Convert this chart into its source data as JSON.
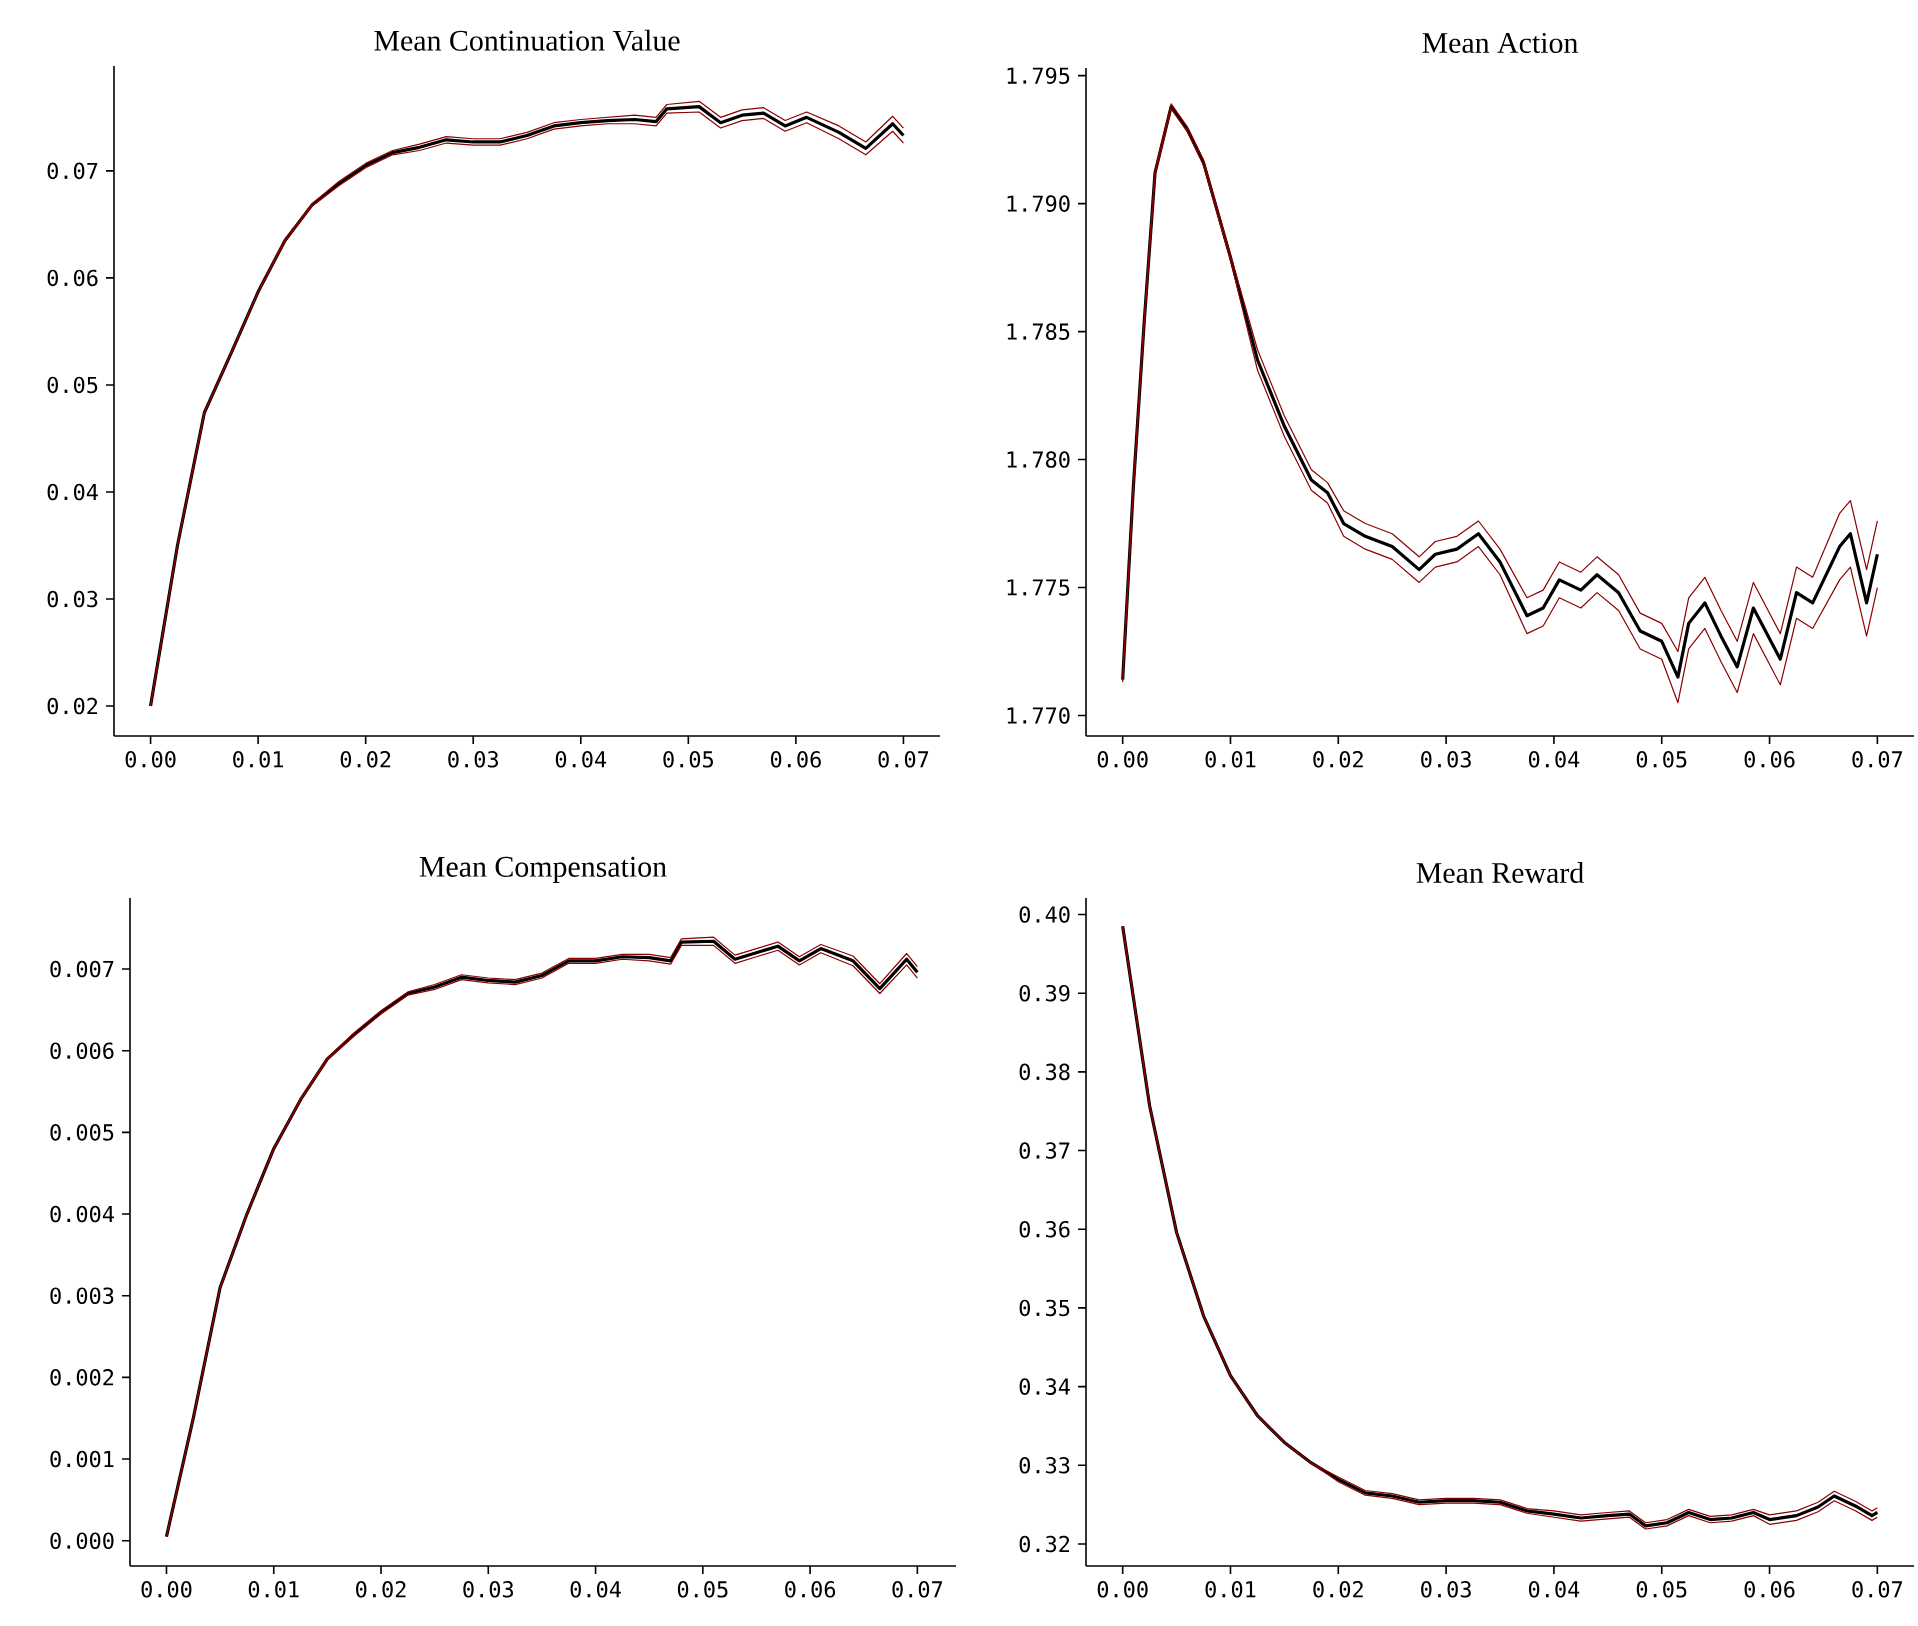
{
  "chart_data": [
    {
      "type": "line",
      "title": "Mean Continuation Value",
      "x": [
        0,
        0.0025,
        0.005,
        0.0075,
        0.01,
        0.0125,
        0.015,
        0.0175,
        0.02,
        0.0225,
        0.025,
        0.0275,
        0.03,
        0.0325,
        0.035,
        0.0375,
        0.04,
        0.0425,
        0.045,
        0.047,
        0.048,
        0.051,
        0.053,
        0.055,
        0.057,
        0.059,
        0.061,
        0.064,
        0.0665,
        0.069,
        0.07
      ],
      "series": [
        {
          "color": "#000000",
          "values": [
            0.02,
            0.035,
            0.0474,
            0.053,
            0.0587,
            0.0635,
            0.0668,
            0.0688,
            0.0705,
            0.0717,
            0.0722,
            0.0729,
            0.0727,
            0.0727,
            0.0733,
            0.0742,
            0.0745,
            0.0747,
            0.0748,
            0.0746,
            0.0758,
            0.076,
            0.0745,
            0.0752,
            0.0754,
            0.0742,
            0.075,
            0.0736,
            0.0721,
            0.0744,
            0.0733
          ]
        },
        {
          "color": "#8b0000",
          "values": [
            0.02,
            0.035,
            0.0474,
            0.053,
            0.0587,
            0.0636,
            0.0669,
            0.069,
            0.0707,
            0.0719,
            0.0725,
            0.0732,
            0.073,
            0.073,
            0.0736,
            0.0745,
            0.0748,
            0.075,
            0.0752,
            0.075,
            0.0762,
            0.0765,
            0.075,
            0.0757,
            0.0759,
            0.0747,
            0.0755,
            0.0742,
            0.0727,
            0.0751,
            0.074
          ]
        },
        {
          "color": "#8b0000",
          "values": [
            0.02,
            0.035,
            0.0474,
            0.053,
            0.0587,
            0.0634,
            0.0667,
            0.0686,
            0.0703,
            0.0715,
            0.0719,
            0.0726,
            0.0724,
            0.0724,
            0.073,
            0.0739,
            0.0742,
            0.0744,
            0.0744,
            0.0742,
            0.0754,
            0.0755,
            0.074,
            0.0747,
            0.0749,
            0.0737,
            0.0745,
            0.073,
            0.0715,
            0.0737,
            0.0726
          ]
        }
      ],
      "xlim": [
        -0.0034,
        0.0734
      ],
      "ylim": [
        0.0172,
        0.0798
      ],
      "xticks": [
        {
          "value": 0,
          "label": "0.00"
        },
        {
          "value": 0.01,
          "label": "0.01"
        },
        {
          "value": 0.02,
          "label": "0.02"
        },
        {
          "value": 0.03,
          "label": "0.03"
        },
        {
          "value": 0.04,
          "label": "0.04"
        },
        {
          "value": 0.05,
          "label": "0.05"
        },
        {
          "value": 0.06,
          "label": "0.06"
        },
        {
          "value": 0.07,
          "label": "0.07"
        }
      ],
      "yticks": [
        0.02,
        0.03,
        0.04,
        0.05,
        0.06,
        0.07
      ]
    },
    {
      "type": "line",
      "title": "Mean Action",
      "x": [
        0,
        0.001,
        0.002,
        0.003,
        0.0045,
        0.006,
        0.0075,
        0.01,
        0.0125,
        0.015,
        0.0175,
        0.019,
        0.0205,
        0.0225,
        0.025,
        0.0275,
        0.029,
        0.031,
        0.033,
        0.035,
        0.0375,
        0.039,
        0.0405,
        0.0425,
        0.044,
        0.046,
        0.048,
        0.05,
        0.0515,
        0.0525,
        0.054,
        0.0555,
        0.057,
        0.0585,
        0.061,
        0.0625,
        0.064,
        0.0665,
        0.0675,
        0.069,
        0.07
      ],
      "series": [
        {
          "color": "#000000",
          "values": [
            1.7714,
            1.779,
            1.7854,
            1.7912,
            1.7938,
            1.7929,
            1.7916,
            1.7879,
            1.7839,
            1.7813,
            1.7792,
            1.7787,
            1.7775,
            1.777,
            1.7766,
            1.7757,
            1.7763,
            1.7765,
            1.7771,
            1.776,
            1.7739,
            1.7742,
            1.7753,
            1.7749,
            1.7755,
            1.7748,
            1.7733,
            1.7729,
            1.7715,
            1.7736,
            1.7744,
            1.7731,
            1.7719,
            1.7742,
            1.7722,
            1.7748,
            1.7744,
            1.7766,
            1.7771,
            1.7744,
            1.7763
          ]
        },
        {
          "color": "#8b0000",
          "values": [
            1.7715,
            1.7791,
            1.7855,
            1.7913,
            1.7939,
            1.793,
            1.7917,
            1.788,
            1.7843,
            1.7817,
            1.7796,
            1.7791,
            1.778,
            1.7775,
            1.7771,
            1.7762,
            1.7768,
            1.777,
            1.7776,
            1.7765,
            1.7746,
            1.7749,
            1.776,
            1.7756,
            1.7762,
            1.7755,
            1.774,
            1.7736,
            1.7725,
            1.7746,
            1.7754,
            1.7741,
            1.7729,
            1.7752,
            1.7732,
            1.7758,
            1.7754,
            1.7779,
            1.7784,
            1.7757,
            1.7776
          ]
        },
        {
          "color": "#8b0000",
          "values": [
            1.7713,
            1.7789,
            1.7853,
            1.7911,
            1.7937,
            1.7928,
            1.7915,
            1.7878,
            1.7835,
            1.7809,
            1.7788,
            1.7783,
            1.777,
            1.7765,
            1.7761,
            1.7752,
            1.7758,
            1.776,
            1.7766,
            1.7755,
            1.7732,
            1.7735,
            1.7746,
            1.7742,
            1.7748,
            1.7741,
            1.7726,
            1.7722,
            1.7705,
            1.7726,
            1.7734,
            1.7721,
            1.7709,
            1.7732,
            1.7712,
            1.7738,
            1.7734,
            1.7753,
            1.7758,
            1.7731,
            1.775
          ]
        }
      ],
      "xlim": [
        -0.0034,
        0.0734
      ],
      "ylim": [
        1.7692,
        1.7953
      ],
      "xticks": [
        {
          "value": 0,
          "label": "0.00"
        },
        {
          "value": 0.01,
          "label": "0.01"
        },
        {
          "value": 0.02,
          "label": "0.02"
        },
        {
          "value": 0.03,
          "label": "0.03"
        },
        {
          "value": 0.04,
          "label": "0.04"
        },
        {
          "value": 0.05,
          "label": "0.05"
        },
        {
          "value": 0.06,
          "label": "0.06"
        },
        {
          "value": 0.07,
          "label": "0.07"
        }
      ],
      "yticks": [
        {
          "value": 1.77,
          "label": "1.770"
        },
        {
          "value": 1.775,
          "label": "1.775"
        },
        {
          "value": 1.78,
          "label": "1.780"
        },
        {
          "value": 1.785,
          "label": "1.785"
        },
        {
          "value": 1.79,
          "label": "1.790"
        },
        {
          "value": 1.795,
          "label": "1.795"
        }
      ]
    },
    {
      "type": "line",
      "title": "Mean Compensation",
      "x": [
        0,
        0.0025,
        0.005,
        0.0075,
        0.01,
        0.0125,
        0.015,
        0.0175,
        0.02,
        0.0225,
        0.025,
        0.0275,
        0.03,
        0.0325,
        0.035,
        0.0375,
        0.04,
        0.0425,
        0.045,
        0.047,
        0.048,
        0.051,
        0.053,
        0.055,
        0.057,
        0.059,
        0.061,
        0.064,
        0.0665,
        0.069,
        0.07
      ],
      "series": [
        {
          "color": "#000000",
          "values": [
            5e-05,
            0.0015,
            0.0031,
            0.004,
            0.0048,
            0.0054,
            0.0059,
            0.0062,
            0.00647,
            0.0067,
            0.00678,
            0.0069,
            0.00686,
            0.00684,
            0.00692,
            0.0071,
            0.0071,
            0.00715,
            0.00714,
            0.0071,
            0.00733,
            0.00734,
            0.00712,
            0.0072,
            0.00728,
            0.0071,
            0.00725,
            0.0071,
            0.00676,
            0.00712,
            0.00696
          ]
        },
        {
          "color": "#8b0000",
          "values": [
            5e-05,
            0.0015,
            0.0031,
            0.004,
            0.0048,
            0.00541,
            0.00591,
            0.00622,
            0.00649,
            0.00672,
            0.00681,
            0.00693,
            0.00689,
            0.00687,
            0.00695,
            0.00713,
            0.00713,
            0.00718,
            0.00718,
            0.00714,
            0.00737,
            0.00739,
            0.00717,
            0.00725,
            0.00733,
            0.00715,
            0.0073,
            0.00716,
            0.00682,
            0.00719,
            0.00703
          ]
        },
        {
          "color": "#8b0000",
          "values": [
            5e-05,
            0.0015,
            0.0031,
            0.004,
            0.0048,
            0.00539,
            0.00589,
            0.00618,
            0.00645,
            0.00668,
            0.00675,
            0.00687,
            0.00683,
            0.00681,
            0.00689,
            0.00707,
            0.00707,
            0.00712,
            0.0071,
            0.00706,
            0.00729,
            0.00729,
            0.00707,
            0.00715,
            0.00723,
            0.00705,
            0.0072,
            0.00704,
            0.0067,
            0.00705,
            0.00689
          ]
        }
      ],
      "xlim": [
        -0.0034,
        0.0736
      ],
      "ylim": [
        -0.00031,
        0.00787
      ],
      "xticks": [
        {
          "value": 0,
          "label": "0.00"
        },
        {
          "value": 0.01,
          "label": "0.01"
        },
        {
          "value": 0.02,
          "label": "0.02"
        },
        {
          "value": 0.03,
          "label": "0.03"
        },
        {
          "value": 0.04,
          "label": "0.04"
        },
        {
          "value": 0.05,
          "label": "0.05"
        },
        {
          "value": 0.06,
          "label": "0.06"
        },
        {
          "value": 0.07,
          "label": "0.07"
        }
      ],
      "yticks": [
        {
          "value": 0,
          "label": "0.000"
        },
        0.001,
        0.002,
        0.003,
        0.004,
        0.005,
        0.006,
        0.007
      ]
    },
    {
      "type": "line",
      "title": "Mean Reward",
      "x": [
        0,
        0.0025,
        0.005,
        0.0075,
        0.01,
        0.0125,
        0.015,
        0.0175,
        0.02,
        0.0225,
        0.025,
        0.0275,
        0.03,
        0.0325,
        0.035,
        0.0375,
        0.04,
        0.0425,
        0.045,
        0.047,
        0.0485,
        0.0505,
        0.0525,
        0.0545,
        0.0565,
        0.0585,
        0.06,
        0.0625,
        0.0645,
        0.066,
        0.068,
        0.0695,
        0.07
      ],
      "series": [
        {
          "color": "#000000",
          "values": [
            0.3985,
            0.3757,
            0.3596,
            0.349,
            0.3414,
            0.3363,
            0.3329,
            0.3303,
            0.3282,
            0.3265,
            0.3261,
            0.3253,
            0.3255,
            0.3255,
            0.3253,
            0.3242,
            0.3238,
            0.3233,
            0.3236,
            0.3238,
            0.3223,
            0.3227,
            0.324,
            0.3231,
            0.3233,
            0.324,
            0.3231,
            0.3236,
            0.3247,
            0.3261,
            0.3248,
            0.3236,
            0.324
          ]
        },
        {
          "color": "#8b0000",
          "values": [
            0.3985,
            0.3757,
            0.3596,
            0.349,
            0.3414,
            0.3363,
            0.3329,
            0.3303,
            0.3285,
            0.3268,
            0.3264,
            0.3256,
            0.3258,
            0.3258,
            0.3256,
            0.3245,
            0.3242,
            0.3237,
            0.324,
            0.3242,
            0.3227,
            0.3231,
            0.3244,
            0.3235,
            0.3237,
            0.3244,
            0.3237,
            0.3242,
            0.3253,
            0.3267,
            0.3254,
            0.3242,
            0.3246
          ]
        },
        {
          "color": "#8b0000",
          "values": [
            0.3985,
            0.3757,
            0.3596,
            0.349,
            0.3414,
            0.3363,
            0.3329,
            0.3303,
            0.3279,
            0.3262,
            0.3258,
            0.325,
            0.3252,
            0.3252,
            0.325,
            0.3239,
            0.3234,
            0.3229,
            0.3232,
            0.3234,
            0.3219,
            0.3223,
            0.3236,
            0.3227,
            0.3229,
            0.3236,
            0.3225,
            0.323,
            0.3241,
            0.3255,
            0.3242,
            0.323,
            0.3234
          ]
        }
      ],
      "xlim": [
        -0.0034,
        0.0734
      ],
      "ylim": [
        0.3172,
        0.4021
      ],
      "xticks": [
        {
          "value": 0,
          "label": "0.00"
        },
        {
          "value": 0.01,
          "label": "0.01"
        },
        {
          "value": 0.02,
          "label": "0.02"
        },
        {
          "value": 0.03,
          "label": "0.03"
        },
        {
          "value": 0.04,
          "label": "0.04"
        },
        {
          "value": 0.05,
          "label": "0.05"
        },
        {
          "value": 0.06,
          "label": "0.06"
        },
        {
          "value": 0.07,
          "label": "0.07"
        }
      ],
      "yticks": [
        0.32,
        0.33,
        0.34,
        0.35,
        0.36,
        0.37,
        0.38,
        0.39,
        {
          "value": 0.4,
          "label": "0.40"
        }
      ]
    }
  ]
}
